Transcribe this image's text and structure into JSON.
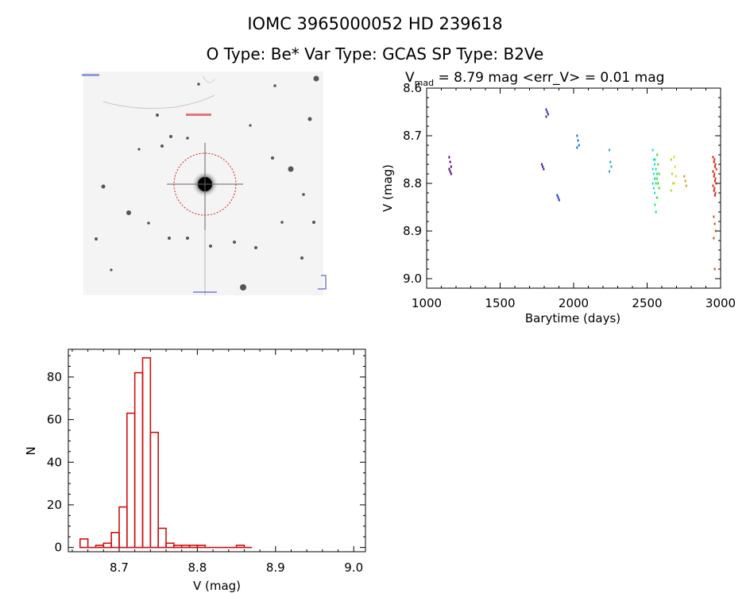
{
  "header": {
    "title": "IOMC 3965000052    HD 239618",
    "subtitle": "O Type: Be*  Var Type: GCAS  SP Type: B2Ve"
  },
  "image_panel": {
    "circle_color": "#d62020",
    "marker_color": "#d62020"
  },
  "colors": {
    "hist": "#cc1111",
    "axis": "#000000"
  },
  "chart_data": [
    {
      "type": "scatter",
      "title_main": "V",
      "title_sub": "mad",
      "title_rest": " = 8.79 mag <err_V> = 0.01 mag",
      "xlabel": "Barytime (days)",
      "ylabel": "V (mag)",
      "xlim": [
        1000,
        3000
      ],
      "ylim": [
        9.02,
        8.6
      ],
      "xticks": [
        1000,
        1500,
        2000,
        2500,
        3000
      ],
      "yticks": [
        8.6,
        8.7,
        8.8,
        8.9,
        9.0
      ],
      "ytick_labels": [
        "8.6",
        "8.7",
        "8.8",
        "8.9",
        "9.0"
      ],
      "clusters": [
        {
          "x": 1160,
          "color": "#5b0077",
          "ys": [
            8.745,
            8.755,
            8.765,
            8.77,
            8.775,
            8.78
          ]
        },
        {
          "x": 1790,
          "color": "#4a1a9a",
          "ys": [
            8.76,
            8.765,
            8.77
          ]
        },
        {
          "x": 1820,
          "color": "#3a2aa8",
          "ys": [
            8.645,
            8.65,
            8.655,
            8.66
          ]
        },
        {
          "x": 1895,
          "color": "#2233bb",
          "ys": [
            8.825,
            8.83,
            8.835
          ]
        },
        {
          "x": 2030,
          "color": "#1a6fd0",
          "ys": [
            8.7,
            8.71,
            8.72,
            8.725
          ]
        },
        {
          "x": 2250,
          "color": "#22a8d8",
          "ys": [
            8.73,
            8.755,
            8.765,
            8.775
          ]
        },
        {
          "x": 2545,
          "color": "#18e0d8",
          "ys": [
            8.73,
            8.75,
            8.76,
            8.77,
            8.78,
            8.79,
            8.8,
            8.81,
            8.82
          ]
        },
        {
          "x": 2560,
          "color": "#22dc88",
          "ys": [
            8.75,
            8.77,
            8.78,
            8.79,
            8.8,
            8.83,
            8.845,
            8.86
          ]
        },
        {
          "x": 2575,
          "color": "#44dd22",
          "ys": [
            8.74,
            8.76,
            8.78,
            8.79,
            8.8,
            8.81,
            8.83
          ]
        },
        {
          "x": 2670,
          "color": "#a8e020",
          "ys": [
            8.75,
            8.78,
            8.8,
            8.815
          ]
        },
        {
          "x": 2690,
          "color": "#d8d818",
          "ys": [
            8.745,
            8.765,
            8.785,
            8.8
          ]
        },
        {
          "x": 2760,
          "color": "#e09a18",
          "ys": [
            8.785,
            8.795,
            8.805
          ]
        },
        {
          "x": 2955,
          "color": "#e01818",
          "ys": [
            8.745,
            8.755,
            8.765,
            8.775,
            8.785,
            8.795,
            8.805,
            8.815,
            8.825
          ]
        },
        {
          "x": 2965,
          "color": "#d83018",
          "ys": [
            8.75,
            8.76,
            8.77,
            8.78,
            8.79,
            8.8,
            8.81,
            8.82
          ]
        },
        {
          "x": 2960,
          "color": "#c85020",
          "ys": [
            8.87,
            8.885,
            8.9,
            8.915,
            8.98
          ]
        }
      ]
    },
    {
      "type": "bar",
      "title": "",
      "xlabel": "V (mag)",
      "ylabel": "N",
      "xlim": [
        8.635,
        9.015
      ],
      "ylim": [
        -2,
        93
      ],
      "xticks": [
        8.7,
        8.8,
        8.9,
        9.0
      ],
      "xtick_labels": [
        "8.7",
        "8.8",
        "8.9",
        "9.0"
      ],
      "yticks": [
        0,
        20,
        40,
        60,
        80
      ],
      "ytick_labels": [
        "0",
        "20",
        "40",
        "60",
        "80"
      ],
      "bin_start": 8.65,
      "bin_width": 0.01,
      "counts": [
        4,
        0,
        1,
        2,
        7,
        19,
        63,
        82,
        89,
        54,
        9,
        2,
        1,
        1,
        1,
        1,
        0,
        0,
        0,
        0,
        1,
        0
      ]
    }
  ]
}
